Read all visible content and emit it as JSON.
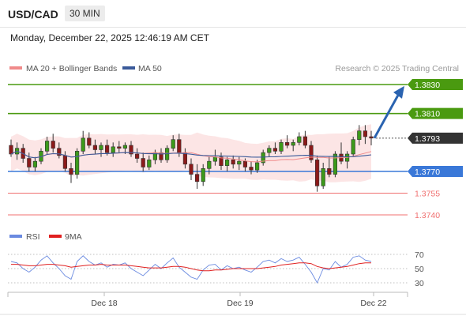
{
  "header": {
    "pair": "USD/CAD",
    "timeframe": "30 MIN"
  },
  "datetime": "Monday, December 22, 2025 12:46:19 AM CET",
  "legend": {
    "bollinger_label": "MA 20 + Bollinger Bands",
    "ma50_label": "MA 50",
    "credit": "Research © 2025 Trading Central",
    "colors": {
      "bollinger": "#f08a8a",
      "ma50": "#3a5a9a"
    }
  },
  "rsi_legend": {
    "rsi_label": "RSI",
    "ma_label": "9MA",
    "colors": {
      "rsi": "#6a8ae0",
      "ma": "#e02020"
    }
  },
  "levels": [
    {
      "value": 1.383,
      "label": "1.3830",
      "kind": "resistance",
      "color": "#4a9a10"
    },
    {
      "value": 1.381,
      "label": "1.3810",
      "kind": "resistance",
      "color": "#4a9a10"
    },
    {
      "value": 1.3793,
      "label": "1.3793",
      "kind": "last",
      "color": "#333333"
    },
    {
      "value": 1.377,
      "label": "1.3770",
      "kind": "pivot",
      "color": "#3a78d8"
    },
    {
      "value": 1.3755,
      "label": "1.3755",
      "kind": "support",
      "color": "#f07070"
    },
    {
      "value": 1.374,
      "label": "1.3740",
      "kind": "support",
      "color": "#f07070"
    }
  ],
  "x_axis": [
    "Dec 18",
    "Dec 19",
    "Dec 22"
  ],
  "rsi_axis": [
    "70",
    "50",
    "30"
  ],
  "chart_data": {
    "type": "candlestick",
    "ylim": [
      1.3735,
      1.384
    ],
    "rsi_ylim": [
      20,
      80
    ],
    "ohlc": [
      [
        1.3788,
        1.3792,
        1.378,
        1.3782
      ],
      [
        1.3782,
        1.379,
        1.3778,
        1.3786
      ],
      [
        1.3786,
        1.3789,
        1.3776,
        1.3779
      ],
      [
        1.3779,
        1.3783,
        1.377,
        1.3773
      ],
      [
        1.3773,
        1.378,
        1.377,
        1.3777
      ],
      [
        1.3777,
        1.3786,
        1.3775,
        1.3784
      ],
      [
        1.3784,
        1.3794,
        1.3782,
        1.3791
      ],
      [
        1.3791,
        1.3796,
        1.3783,
        1.3786
      ],
      [
        1.3786,
        1.379,
        1.3779,
        1.3781
      ],
      [
        1.3781,
        1.3784,
        1.377,
        1.3772
      ],
      [
        1.3772,
        1.3776,
        1.3762,
        1.3768
      ],
      [
        1.3768,
        1.3786,
        1.3765,
        1.3784
      ],
      [
        1.3784,
        1.3798,
        1.3782,
        1.3793
      ],
      [
        1.3793,
        1.3797,
        1.3786,
        1.3788
      ],
      [
        1.3788,
        1.3792,
        1.3782,
        1.3785
      ],
      [
        1.3785,
        1.379,
        1.378,
        1.3788
      ],
      [
        1.3788,
        1.3792,
        1.3781,
        1.3783
      ],
      [
        1.3783,
        1.379,
        1.378,
        1.3787
      ],
      [
        1.3787,
        1.3791,
        1.3783,
        1.3786
      ],
      [
        1.3786,
        1.379,
        1.3782,
        1.3788
      ],
      [
        1.3788,
        1.3791,
        1.378,
        1.3782
      ],
      [
        1.3782,
        1.3786,
        1.3776,
        1.3779
      ],
      [
        1.3779,
        1.3783,
        1.377,
        1.3773
      ],
      [
        1.3773,
        1.3781,
        1.3771,
        1.3778
      ],
      [
        1.3778,
        1.3785,
        1.3775,
        1.3783
      ],
      [
        1.3783,
        1.3786,
        1.3776,
        1.3778
      ],
      [
        1.3778,
        1.3788,
        1.3776,
        1.3786
      ],
      [
        1.3786,
        1.3795,
        1.3784,
        1.3792
      ],
      [
        1.3792,
        1.3796,
        1.378,
        1.3783
      ],
      [
        1.3783,
        1.3786,
        1.3772,
        1.3775
      ],
      [
        1.3775,
        1.3779,
        1.3764,
        1.3768
      ],
      [
        1.3768,
        1.3775,
        1.3758,
        1.3763
      ],
      [
        1.3763,
        1.3775,
        1.376,
        1.3772
      ],
      [
        1.3772,
        1.378,
        1.3768,
        1.3777
      ],
      [
        1.3777,
        1.3785,
        1.3774,
        1.378
      ],
      [
        1.378,
        1.3783,
        1.3771,
        1.3774
      ],
      [
        1.3774,
        1.378,
        1.377,
        1.3778
      ],
      [
        1.3778,
        1.3781,
        1.3772,
        1.3775
      ],
      [
        1.3775,
        1.378,
        1.3771,
        1.3777
      ],
      [
        1.3777,
        1.3779,
        1.377,
        1.3773
      ],
      [
        1.3773,
        1.3777,
        1.3768,
        1.3771
      ],
      [
        1.3771,
        1.3778,
        1.3769,
        1.3776
      ],
      [
        1.3776,
        1.3785,
        1.3774,
        1.3783
      ],
      [
        1.3783,
        1.3788,
        1.378,
        1.3786
      ],
      [
        1.3786,
        1.379,
        1.3782,
        1.3784
      ],
      [
        1.3784,
        1.3792,
        1.3782,
        1.379
      ],
      [
        1.379,
        1.3795,
        1.3786,
        1.3788
      ],
      [
        1.3788,
        1.3792,
        1.3784,
        1.379
      ],
      [
        1.379,
        1.3797,
        1.3788,
        1.3794
      ],
      [
        1.3794,
        1.3798,
        1.3786,
        1.3788
      ],
      [
        1.3788,
        1.3791,
        1.3776,
        1.3778
      ],
      [
        1.3778,
        1.3781,
        1.3756,
        1.376
      ],
      [
        1.376,
        1.3776,
        1.3758,
        1.3772
      ],
      [
        1.3772,
        1.378,
        1.3766,
        1.3768
      ],
      [
        1.3768,
        1.3784,
        1.3766,
        1.3782
      ],
      [
        1.3782,
        1.379,
        1.3775,
        1.3777
      ],
      [
        1.3777,
        1.3784,
        1.3772,
        1.3782
      ],
      [
        1.3782,
        1.3794,
        1.378,
        1.3792
      ],
      [
        1.3792,
        1.3802,
        1.3788,
        1.3798
      ],
      [
        1.3798,
        1.3802,
        1.3789,
        1.3794
      ],
      [
        1.3794,
        1.3798,
        1.3788,
        1.3793
      ]
    ],
    "rsi": [
      60,
      58,
      50,
      45,
      52,
      62,
      68,
      58,
      50,
      40,
      35,
      60,
      68,
      60,
      55,
      58,
      52,
      56,
      55,
      58,
      50,
      45,
      40,
      48,
      56,
      50,
      58,
      65,
      52,
      45,
      38,
      35,
      48,
      55,
      56,
      48,
      54,
      50,
      52,
      48,
      45,
      52,
      60,
      62,
      58,
      64,
      60,
      62,
      66,
      56,
      45,
      30,
      50,
      48,
      60,
      52,
      56,
      66,
      68,
      62,
      60
    ],
    "rsi_ma": [
      56,
      56,
      55,
      54,
      54,
      55,
      56,
      56,
      55,
      54,
      52,
      53,
      54,
      55,
      55,
      56,
      55,
      55,
      55,
      55,
      54,
      53,
      52,
      51,
      51,
      51,
      52,
      53,
      53,
      52,
      50,
      48,
      47,
      47,
      48,
      48,
      49,
      50,
      50,
      50,
      50,
      50,
      51,
      52,
      53,
      55,
      56,
      57,
      58,
      58,
      57,
      53,
      51,
      50,
      51,
      52,
      53,
      55,
      57,
      58,
      58
    ]
  }
}
